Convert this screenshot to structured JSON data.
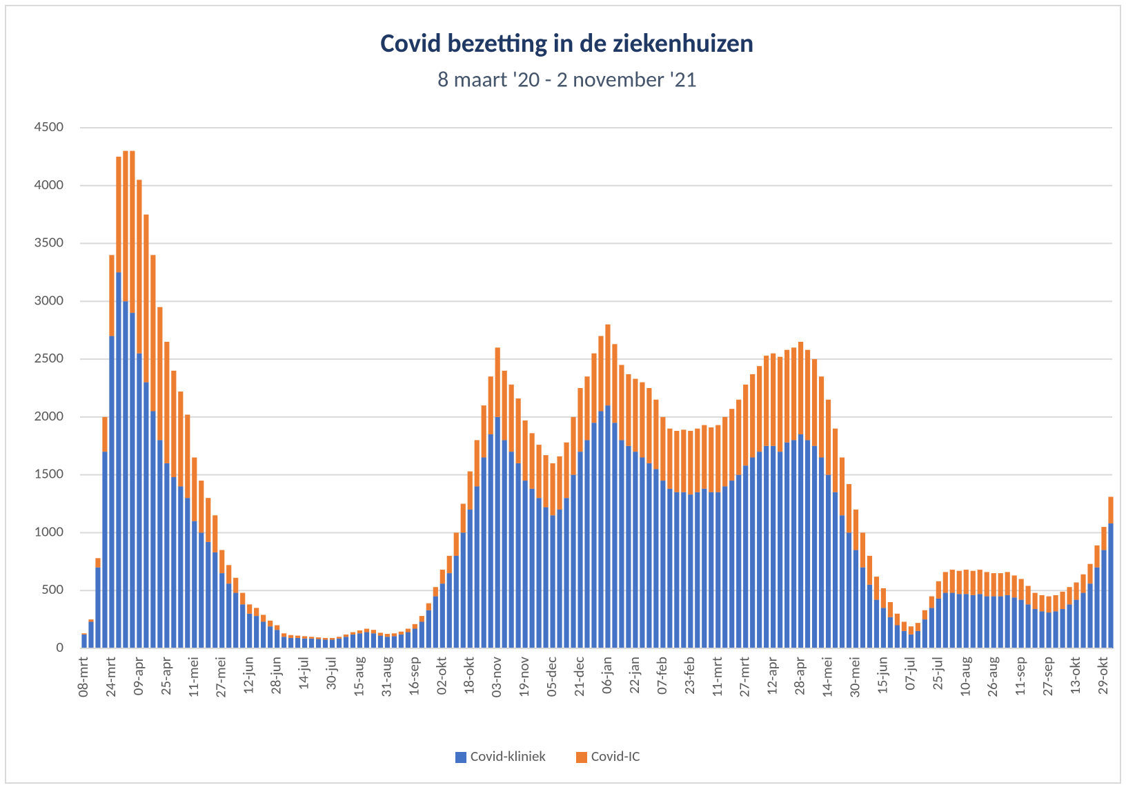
{
  "chart_data": {
    "type": "stacked-bar",
    "title": "Covid bezetting in de ziekenhuizen",
    "subtitle": "8 maart '20 - 2 november '21",
    "categories": [
      "08-mrt",
      null,
      null,
      null,
      "24-mrt",
      null,
      null,
      null,
      "09-apr",
      null,
      null,
      null,
      "25-apr",
      null,
      null,
      null,
      "11-mei",
      null,
      null,
      null,
      "27-mei",
      null,
      null,
      null,
      "12-jun",
      null,
      null,
      null,
      "28-jun",
      null,
      null,
      null,
      "14-jul",
      null,
      null,
      null,
      "30-jul",
      null,
      null,
      null,
      "15-aug",
      null,
      null,
      null,
      "31-aug",
      null,
      null,
      null,
      "16-sep",
      null,
      null,
      null,
      "02-okt",
      null,
      null,
      null,
      "18-okt",
      null,
      null,
      null,
      "03-nov",
      null,
      null,
      null,
      "19-nov",
      null,
      null,
      null,
      "05-dec",
      null,
      null,
      null,
      "21-dec",
      null,
      null,
      null,
      "06-jan",
      null,
      null,
      null,
      "22-jan",
      null,
      null,
      null,
      "07-feb",
      null,
      null,
      null,
      "23-feb",
      null,
      null,
      null,
      "11-mrt",
      null,
      null,
      null,
      "27-mrt",
      null,
      null,
      null,
      "12-apr",
      null,
      null,
      null,
      "28-apr",
      null,
      null,
      null,
      "14-mei",
      null,
      null,
      null,
      "30-mei",
      null,
      null,
      null,
      "15-jun",
      null,
      null,
      null,
      "07-jul",
      null,
      null,
      null,
      "25-jul",
      null,
      null,
      null,
      "10-aug",
      null,
      null,
      null,
      "26-aug",
      null,
      null,
      null,
      "11-sep",
      null,
      null,
      null,
      "27-sep",
      null,
      null,
      null,
      "13-okt",
      null,
      null,
      null,
      "29-okt",
      null
    ],
    "series": [
      {
        "name": "Covid-kliniek",
        "color": "#4472c4",
        "values": [
          120,
          230,
          700,
          1700,
          2700,
          3250,
          3000,
          2900,
          2550,
          2300,
          2050,
          1800,
          1600,
          1480,
          1400,
          1300,
          1100,
          1000,
          920,
          830,
          650,
          560,
          480,
          380,
          300,
          280,
          230,
          190,
          160,
          100,
          90,
          90,
          85,
          85,
          80,
          75,
          75,
          85,
          100,
          120,
          130,
          140,
          130,
          110,
          100,
          105,
          120,
          140,
          170,
          230,
          330,
          450,
          560,
          650,
          800,
          1000,
          1200,
          1400,
          1650,
          1850,
          2000,
          1800,
          1700,
          1600,
          1450,
          1380,
          1300,
          1220,
          1150,
          1200,
          1300,
          1500,
          1700,
          1800,
          1950,
          2050,
          2100,
          1950,
          1800,
          1750,
          1700,
          1650,
          1600,
          1550,
          1450,
          1380,
          1350,
          1350,
          1330,
          1350,
          1380,
          1350,
          1350,
          1400,
          1450,
          1500,
          1580,
          1650,
          1700,
          1750,
          1750,
          1700,
          1780,
          1800,
          1850,
          1800,
          1750,
          1650,
          1500,
          1350,
          1150,
          1000,
          850,
          700,
          550,
          420,
          350,
          270,
          200,
          150,
          120,
          150,
          250,
          350,
          430,
          480,
          480,
          470,
          470,
          460,
          470,
          450,
          450,
          450,
          460,
          440,
          420,
          380,
          340,
          320,
          310,
          320,
          340,
          380,
          420,
          480,
          560,
          700,
          850,
          1080
        ]
      },
      {
        "name": "Covid-IC",
        "color": "#ed7d31",
        "values": [
          10,
          20,
          80,
          300,
          700,
          1000,
          1300,
          1400,
          1500,
          1450,
          1350,
          1150,
          1050,
          920,
          820,
          720,
          550,
          450,
          380,
          320,
          200,
          160,
          130,
          100,
          80,
          70,
          60,
          50,
          40,
          30,
          25,
          20,
          20,
          15,
          15,
          15,
          15,
          15,
          20,
          20,
          25,
          30,
          30,
          25,
          25,
          25,
          25,
          30,
          40,
          50,
          60,
          80,
          120,
          150,
          200,
          250,
          330,
          400,
          450,
          500,
          600,
          600,
          580,
          560,
          520,
          480,
          460,
          450,
          450,
          460,
          480,
          500,
          550,
          550,
          600,
          650,
          700,
          680,
          650,
          620,
          630,
          650,
          650,
          600,
          550,
          520,
          530,
          540,
          550,
          550,
          550,
          560,
          580,
          600,
          620,
          650,
          700,
          720,
          740,
          780,
          800,
          820,
          800,
          800,
          800,
          780,
          750,
          700,
          650,
          550,
          500,
          420,
          350,
          300,
          250,
          200,
          170,
          130,
          100,
          80,
          70,
          70,
          80,
          100,
          150,
          180,
          200,
          200,
          210,
          210,
          210,
          210,
          200,
          200,
          200,
          190,
          180,
          160,
          140,
          140,
          140,
          140,
          150,
          150,
          150,
          160,
          170,
          190,
          200,
          230
        ]
      }
    ],
    "ylim": [
      0,
      4500
    ],
    "yticks": [
      0,
      500,
      1000,
      1500,
      2000,
      2500,
      3000,
      3500,
      4000,
      4500
    ],
    "grid": true,
    "legend": "bottom"
  }
}
